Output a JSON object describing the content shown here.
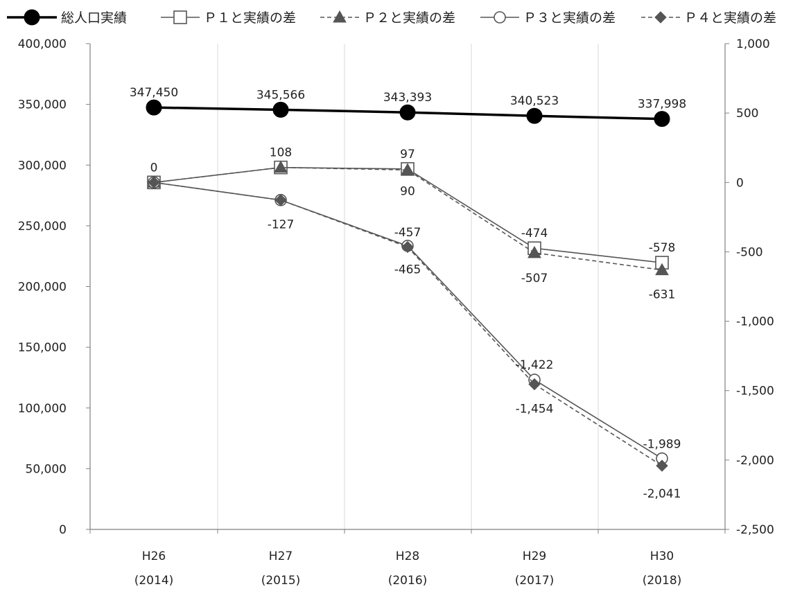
{
  "chart_data": {
    "type": "line",
    "categories": [
      {
        "era": "H26",
        "year": "(2014)"
      },
      {
        "era": "H27",
        "year": "(2015)"
      },
      {
        "era": "H28",
        "year": "(2016)"
      },
      {
        "era": "H29",
        "year": "(2017)"
      },
      {
        "era": "H30",
        "year": "(2018)"
      }
    ],
    "left_axis": {
      "min": 0,
      "max": 400000,
      "step": 50000,
      "ticks": [
        "0",
        "50,000",
        "100,000",
        "150,000",
        "200,000",
        "250,000",
        "300,000",
        "350,000",
        "400,000"
      ]
    },
    "right_axis": {
      "min": -2500,
      "max": 1000,
      "step": 500,
      "ticks": [
        "-2,500",
        "-2,000",
        "-1,500",
        "-1,000",
        "-500",
        "0",
        "500",
        "1,000"
      ]
    },
    "grid": "vertical",
    "legend_position": "top",
    "series": [
      {
        "name": "総人口実績",
        "axis": "left",
        "values": [
          347450,
          345566,
          343393,
          340523,
          337998
        ],
        "labels": [
          "347,450",
          "345,566",
          "343,393",
          "340,523",
          "337,998"
        ],
        "marker": "filled-circle",
        "dash": false,
        "color": "#000000"
      },
      {
        "name": "Ｐ１と実績の差",
        "axis": "right",
        "values": [
          0,
          108,
          97,
          -474,
          -578
        ],
        "labels": [
          "0",
          "108",
          "97",
          "-474",
          "-578"
        ],
        "marker": "open-square",
        "dash": false,
        "color": "#555555"
      },
      {
        "name": "Ｐ２と実績の差",
        "axis": "right",
        "values": [
          0,
          108,
          90,
          -507,
          -631
        ],
        "labels": [
          "",
          "",
          "90",
          "-507",
          "-631"
        ],
        "marker": "filled-triangle",
        "dash": true,
        "color": "#555555"
      },
      {
        "name": "Ｐ３と実績の差",
        "axis": "right",
        "values": [
          0,
          -127,
          -457,
          -1422,
          -1989
        ],
        "labels": [
          "",
          "-127",
          "-457",
          "-1,422",
          "-1,989"
        ],
        "marker": "open-circle",
        "dash": false,
        "color": "#555555"
      },
      {
        "name": "Ｐ４と実績の差",
        "axis": "right",
        "values": [
          0,
          -127,
          -465,
          -1454,
          -2041
        ],
        "labels": [
          "",
          "",
          "-465",
          "-1,454",
          "-2,041"
        ],
        "marker": "filled-diamond",
        "dash": true,
        "color": "#555555"
      }
    ]
  }
}
